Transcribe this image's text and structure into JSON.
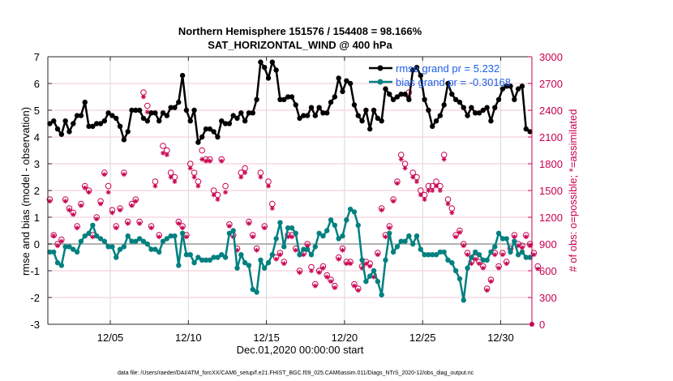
{
  "chart_data": {
    "type": "line",
    "title": "Northern Hemisphere 151576 / 154408 = 98.166%",
    "subtitle": "SAT_HORIZONTAL_WIND @ 400 hPa",
    "xlabel": "Dec.01,2020 00:00:00 start",
    "ylabel": "rmse and bias (model - observation)",
    "y2label": "# of obs: o=possible; *=assimilated",
    "footnote": "data file: /Users/raeder/DAI/ATM_forcXX/CAM6_setup/f.e21.FHIST_BGC.f09_025.CAM6assim.011/Diags_NTrS_2020-12/obs_diag_output.nc",
    "xlim_days": [
      0,
      31
    ],
    "xtick_days": [
      4,
      9,
      14,
      19,
      24,
      29
    ],
    "xtick_labels": [
      "12/05",
      "12/10",
      "12/15",
      "12/20",
      "12/25",
      "12/30"
    ],
    "ylim": [
      -3,
      7
    ],
    "yticks": [
      "7",
      "6",
      "5",
      "4",
      "3",
      "2",
      "1",
      "0",
      "-1",
      "-2",
      "-3"
    ],
    "ytick_values": [
      7,
      6,
      5,
      4,
      3,
      2,
      1,
      0,
      -1,
      -2,
      -3
    ],
    "y2lim": [
      0,
      3000
    ],
    "y2ticks": [
      "3000",
      "2700",
      "2400",
      "2100",
      "1800",
      "1500",
      "1200",
      "900",
      "600",
      "300",
      "0"
    ],
    "y2tick_values": [
      3000,
      2700,
      2400,
      2100,
      1800,
      1500,
      1200,
      900,
      600,
      300,
      0
    ],
    "grid": true,
    "legend_position": "top-right",
    "legend": [
      {
        "label": "rmse grand pr = 5.232",
        "color": "#000000"
      },
      {
        "label": "bias grand pr = -0.30168",
        "color": "#008080"
      }
    ],
    "x_step_days": 0.25,
    "series": [
      {
        "name": "rmse",
        "color": "#000000",
        "values": [
          4.5,
          4.6,
          4.3,
          4.1,
          4.6,
          4.2,
          4.5,
          4.8,
          4.8,
          5.3,
          4.4,
          4.4,
          4.5,
          4.5,
          4.6,
          4.9,
          4.8,
          4.7,
          4.4,
          3.9,
          4.2,
          5.0,
          5.0,
          5.0,
          4.7,
          4.6,
          4.9,
          4.9,
          4.6,
          4.9,
          4.8,
          5.1,
          5.1,
          5.3,
          6.3,
          5.0,
          4.6,
          5.0,
          3.8,
          4.0,
          4.3,
          4.3,
          4.2,
          4.0,
          4.6,
          4.5,
          4.5,
          4.8,
          4.7,
          4.9,
          4.6,
          4.9,
          4.9,
          5.4,
          6.8,
          6.6,
          6.2,
          6.8,
          6.5,
          5.4,
          5.4,
          5.5,
          5.5,
          5.2,
          4.7,
          4.8,
          4.8,
          5.1,
          4.8,
          5.1,
          4.9,
          4.9,
          5.3,
          5.5,
          6.2,
          5.7,
          6.1,
          6.0,
          5.2,
          4.8,
          4.6,
          5.0,
          4.3,
          5.0,
          4.7,
          4.6,
          5.8,
          5.6,
          5.4,
          5.5,
          5.6,
          5.6,
          5.4,
          6.5,
          6.6,
          6.3,
          5.4,
          5.0,
          4.4,
          4.6,
          4.8,
          5.2,
          6.0,
          5.6,
          5.4,
          5.3,
          5.1,
          4.8,
          5.1,
          4.9,
          4.9,
          5.0,
          5.1,
          4.6,
          5.1,
          5.4,
          5.8,
          5.9,
          5.9,
          5.4,
          5.8,
          5.9,
          4.3,
          4.2
        ]
      },
      {
        "name": "bias",
        "color": "#008080",
        "values": [
          -0.3,
          -0.3,
          -0.7,
          -0.8,
          -0.1,
          -0.1,
          -0.2,
          -0.3,
          0.1,
          0.3,
          0.4,
          0.7,
          0.3,
          0.2,
          0.1,
          -0.1,
          -0.1,
          -0.5,
          -0.2,
          -0.1,
          0.3,
          0.1,
          0.1,
          0.2,
          0.1,
          0.0,
          -0.2,
          -0.2,
          -0.3,
          0.1,
          0.2,
          0.3,
          0.3,
          -0.8,
          0.4,
          -0.4,
          -0.4,
          -0.7,
          -0.5,
          -0.6,
          -0.6,
          -0.6,
          -0.5,
          -0.5,
          -0.4,
          -0.5,
          0.4,
          0.5,
          -0.9,
          -0.4,
          -0.7,
          -0.8,
          -1.7,
          -1.8,
          -0.6,
          -0.9,
          -0.7,
          -0.4,
          0.2,
          0.8,
          -0.1,
          0.6,
          0.6,
          0.4,
          -0.4,
          -0.2,
          -0.2,
          -0.4,
          -0.1,
          0.4,
          0.3,
          0.5,
          0.9,
          0.7,
          0.2,
          0.3,
          0.9,
          1.3,
          1.2,
          0.7,
          -0.6,
          -1.4,
          -1.2,
          -1.0,
          -1.4,
          -1.9,
          -0.6,
          0.4,
          -0.3,
          -0.1,
          0.1,
          0.1,
          0.3,
          0.0,
          0.3,
          -0.2,
          -0.4,
          -0.4,
          -0.4,
          -0.4,
          -0.3,
          -0.3,
          -0.6,
          -0.7,
          -1.0,
          -1.3,
          -2.1,
          -0.9,
          -0.5,
          -0.3,
          -0.4,
          -0.6,
          -0.6,
          -0.3,
          -0.1,
          0.4,
          0.2,
          0.2,
          -0.3,
          0.1,
          -0.4,
          -0.3,
          -0.5,
          -0.5
        ]
      },
      {
        "name": "obs_possible",
        "color": "#c8004f",
        "axis": "right",
        "values": [
          1400,
          1000,
          900,
          950,
          1400,
          1300,
          1250,
          1100,
          1350,
          1550,
          1500,
          1000,
          1200,
          1380,
          1700,
          1550,
          1280,
          1100,
          1300,
          1700,
          1150,
          1350,
          1400,
          1150,
          2600,
          2450,
          1100,
          1600,
          1000,
          2000,
          1950,
          1700,
          1650,
          1150,
          1100,
          1000,
          1800,
          1700,
          1600,
          1950,
          1850,
          1850,
          1500,
          1450,
          1850,
          1550,
          1120,
          1000,
          850,
          1700,
          1750,
          1150,
          1000,
          850,
          1700,
          1100,
          1600,
          1350,
          750,
          800,
          700,
          1000,
          1000,
          850,
          600,
          800,
          900,
          640,
          450,
          600,
          650,
          550,
          500,
          430,
          750,
          850,
          700,
          700,
          450,
          400,
          650,
          700,
          680,
          550,
          800,
          1300,
          1000,
          1100,
          1400,
          1600,
          1900,
          1800,
          2600,
          1700,
          1650,
          1500,
          1450,
          1550,
          1550,
          1600,
          1550,
          1900,
          1400,
          1300,
          1000,
          1050,
          900,
          800,
          700,
          750,
          700,
          650,
          400,
          500,
          800,
          650,
          800,
          700,
          850,
          1000,
          900,
          880,
          1000,
          900,
          800,
          650
        ]
      },
      {
        "name": "obs_assimilated",
        "color": "#c8004f",
        "axis": "right",
        "values": [
          1380,
          990,
          880,
          930,
          1380,
          1280,
          1230,
          1080,
          1330,
          1530,
          1480,
          980,
          1180,
          1350,
          1680,
          1480,
          1250,
          1080,
          1280,
          1680,
          1130,
          1330,
          1380,
          1130,
          2550,
          2380,
          1080,
          1550,
          980,
          1920,
          1900,
          1650,
          1600,
          1130,
          1080,
          980,
          1750,
          1650,
          1550,
          1850,
          1830,
          1830,
          1450,
          1400,
          1830,
          1480,
          1100,
          980,
          830,
          1650,
          1700,
          1130,
          980,
          830,
          1650,
          1080,
          1550,
          1300,
          730,
          780,
          680,
          980,
          980,
          830,
          580,
          780,
          880,
          600,
          430,
          580,
          630,
          530,
          480,
          410,
          730,
          830,
          680,
          680,
          430,
          380,
          630,
          680,
          650,
          530,
          780,
          1280,
          980,
          1080,
          1380,
          1580,
          1850,
          1750,
          2550,
          1650,
          1600,
          1450,
          1400,
          1500,
          1500,
          1550,
          1500,
          1850,
          1350,
          1250,
          980,
          1030,
          880,
          780,
          680,
          730,
          680,
          630,
          380,
          480,
          780,
          630,
          780,
          680,
          830,
          980,
          880,
          860,
          980,
          880,
          780,
          620
        ]
      }
    ]
  }
}
